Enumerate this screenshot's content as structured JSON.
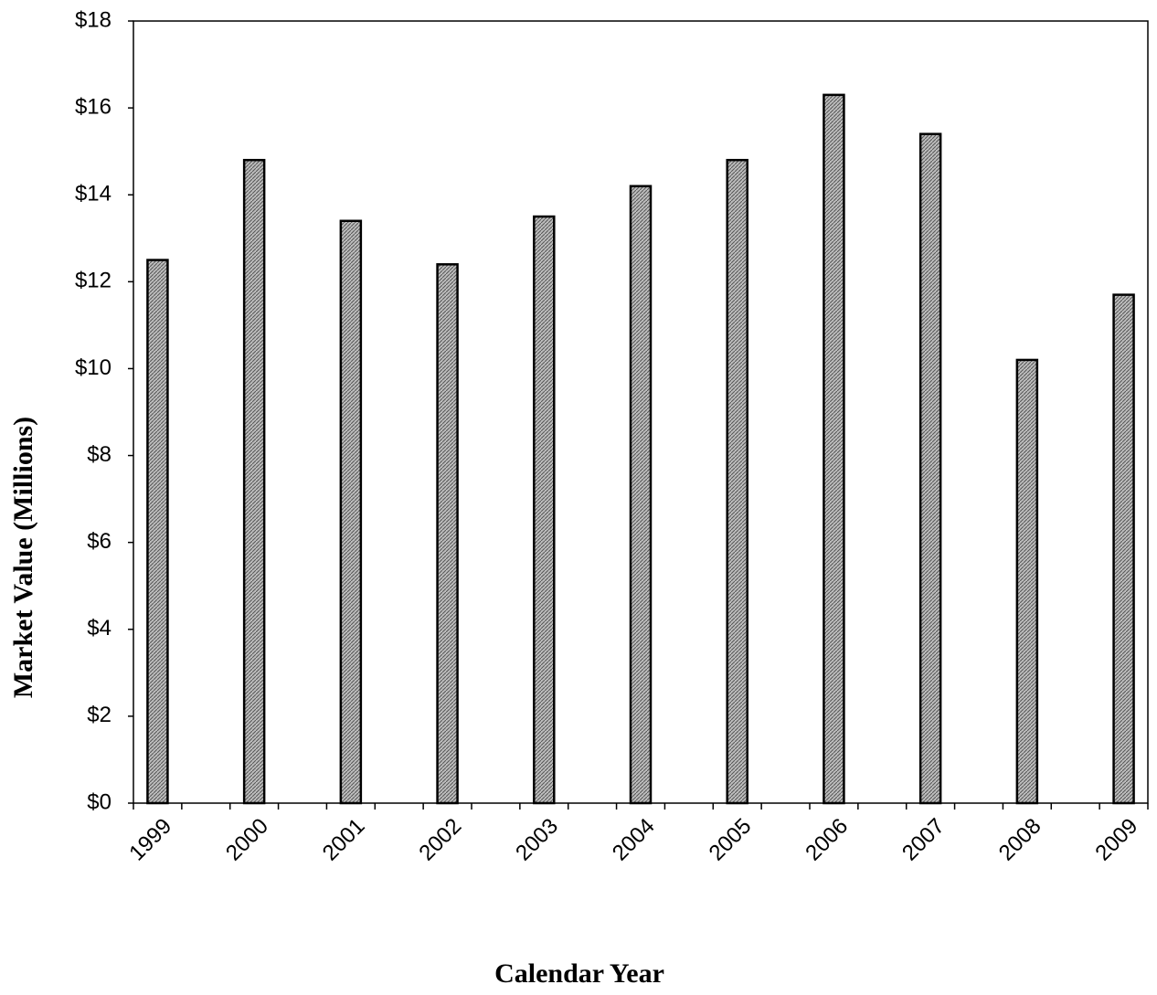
{
  "chart_data": {
    "type": "bar",
    "x_label": "Calendar Year",
    "y_label": "Market Value (Millions)",
    "categories": [
      "1999",
      "2000",
      "2001",
      "2002",
      "2003",
      "2004",
      "2005",
      "2006",
      "2007",
      "2008",
      "2009"
    ],
    "values": [
      12.5,
      14.8,
      13.4,
      12.4,
      13.5,
      14.2,
      14.8,
      16.3,
      15.4,
      10.2,
      11.7
    ],
    "color": "#a8a8a8",
    "ylim": [
      0,
      18
    ],
    "yticks": [
      {
        "value": 0,
        "label": "$0"
      },
      {
        "value": 2,
        "label": "$2"
      },
      {
        "value": 4,
        "label": "$4"
      },
      {
        "value": 6,
        "label": "$6"
      },
      {
        "value": 8,
        "label": "$8"
      },
      {
        "value": 10,
        "label": "$10"
      },
      {
        "value": 12,
        "label": "$12"
      },
      {
        "value": 14,
        "label": "$14"
      },
      {
        "value": 16,
        "label": "$16"
      },
      {
        "value": 18,
        "label": "$18"
      }
    ],
    "grid": false
  }
}
